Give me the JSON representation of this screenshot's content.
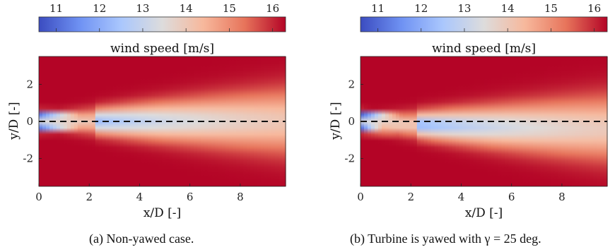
{
  "colormap": {
    "stops": [
      "#3b4cc0",
      "#6f92f3",
      "#aac7fd",
      "#dddcdc",
      "#f7b89c",
      "#e7745b",
      "#b40426"
    ],
    "background": "#b40426"
  },
  "chart_data": [
    {
      "type": "heatmap",
      "title": "",
      "caption": "(a) Non-yawed case.",
      "colorbar": {
        "label": "wind speed [m/s]",
        "ticks": [
          "11",
          "12",
          "13",
          "14",
          "15",
          "16"
        ],
        "range": [
          10.6,
          16.3
        ]
      },
      "xlabel": "x/D [-]",
      "ylabel": "y/D [-]",
      "xlim": [
        0,
        9.8
      ],
      "ylim": [
        -3.5,
        3.5
      ],
      "xticks": [
        "0",
        "2",
        "4",
        "6",
        "8"
      ],
      "yticks": [
        "-2",
        "0",
        "2"
      ],
      "centerline_y": 0,
      "wake": {
        "yaw_deg": 0,
        "min_speed": 11.0,
        "freestream": 16.3
      }
    },
    {
      "type": "heatmap",
      "title": "",
      "caption": "(b) Turbine is yawed with γ = 25 deg.",
      "colorbar": {
        "label": "wind speed [m/s]",
        "ticks": [
          "11",
          "12",
          "13",
          "14",
          "15",
          "16"
        ],
        "range": [
          10.6,
          16.3
        ]
      },
      "xlabel": "x/D [-]",
      "ylabel": "y/D [-]",
      "xlim": [
        0,
        9.8
      ],
      "ylim": [
        -3.5,
        3.5
      ],
      "xticks": [
        "0",
        "2",
        "4",
        "6",
        "8"
      ],
      "yticks": [
        "-2",
        "0",
        "2"
      ],
      "centerline_y": 0,
      "wake": {
        "yaw_deg": 25,
        "min_speed": 10.8,
        "freestream": 16.3
      }
    }
  ]
}
